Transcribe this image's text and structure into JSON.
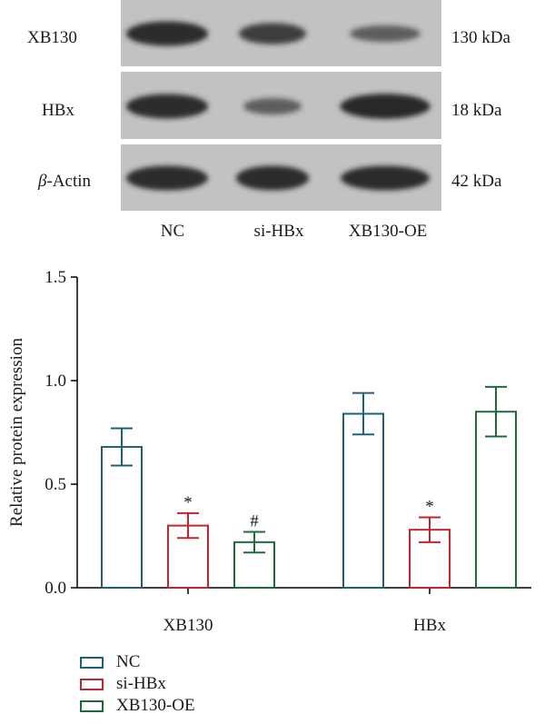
{
  "blot": {
    "rows": [
      {
        "protein": "XB130",
        "size": "130 kDa",
        "intensity": [
          0.95,
          0.75,
          0.45
        ]
      },
      {
        "protein": "HBx",
        "protein_prefix": "",
        "size": "18 kDa",
        "intensity": [
          0.95,
          0.45,
          0.98
        ]
      },
      {
        "protein_greek": "β",
        "protein": "-Actin",
        "size": "42 kDa",
        "intensity": [
          0.95,
          0.95,
          0.95
        ]
      }
    ],
    "lanes": [
      "NC",
      "si-HBx",
      "XB130-OE"
    ]
  },
  "colors": {
    "nc": "#1f5f7a",
    "si": "#c0262d",
    "oe": "#1e6b3a",
    "band": "#262626",
    "strip": "#c2c2c2"
  },
  "chart_data": {
    "type": "bar",
    "categories": [
      "XB130",
      "HBx"
    ],
    "series": [
      {
        "name": "NC",
        "values": [
          0.68,
          0.84
        ],
        "errors": [
          0.09,
          0.1
        ],
        "marks": [
          "",
          ""
        ]
      },
      {
        "name": "si-HBx",
        "values": [
          0.3,
          0.28
        ],
        "errors": [
          0.06,
          0.06
        ],
        "marks": [
          "*",
          "*"
        ]
      },
      {
        "name": "XB130-OE",
        "values": [
          0.22,
          0.85
        ],
        "errors": [
          0.05,
          0.12
        ],
        "marks": [
          "#",
          ""
        ]
      }
    ],
    "ylabel": "Relative protein expression",
    "xlabel": "",
    "ylim": [
      0.0,
      1.5
    ],
    "yticks": [
      "0.0",
      "0.5",
      "1.0",
      "1.5"
    ],
    "grid": false,
    "legend_position": "bottom-left"
  }
}
